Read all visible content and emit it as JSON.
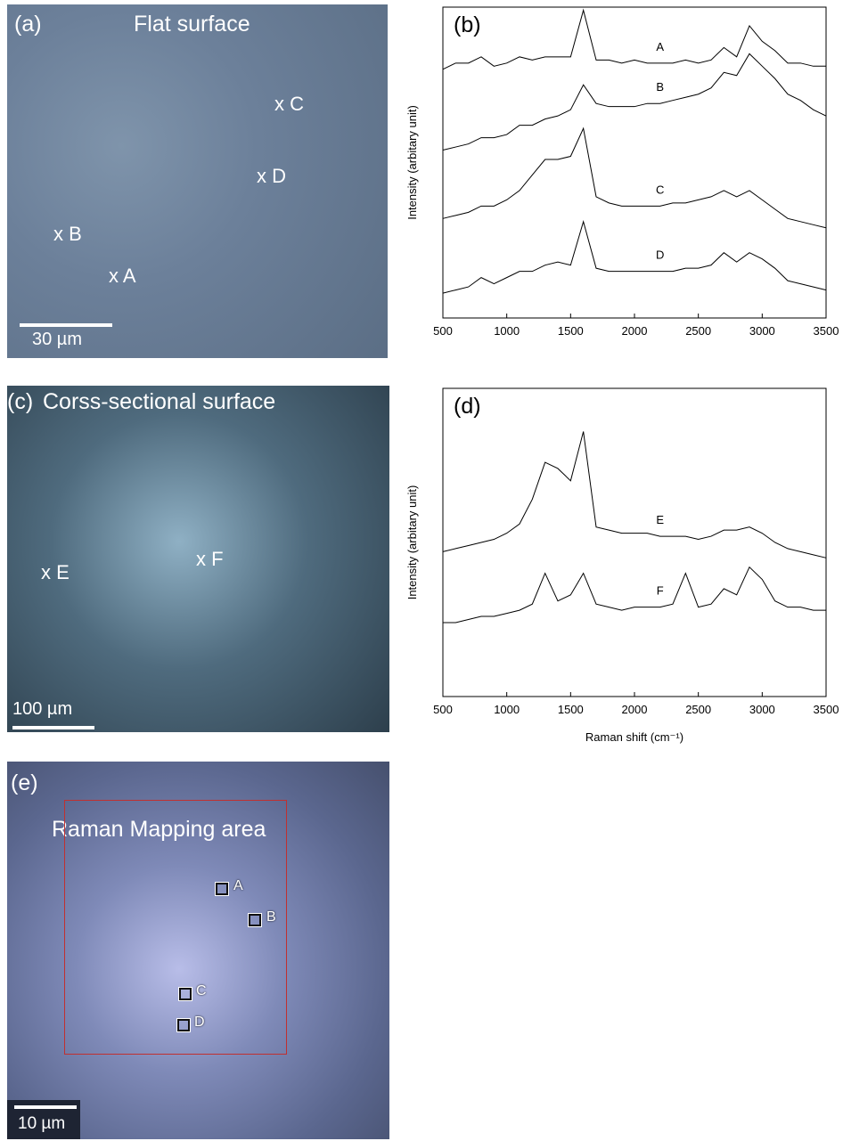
{
  "panels": {
    "a": {
      "label": "(a)",
      "title": "Flat surface",
      "markers": [
        "x A",
        "x B",
        "x C",
        "x D"
      ],
      "scale_bar": "30 µm"
    },
    "c": {
      "label": "(c)",
      "title": "Corss-sectional surface",
      "markers": [
        "x E",
        "x F"
      ],
      "scale_bar": "100 µm"
    },
    "e": {
      "label": "(e)",
      "title": "Raman Mapping area",
      "markers": [
        "A",
        "B",
        "C",
        "D"
      ],
      "scale_bar": "10 µm"
    }
  },
  "chart_data": [
    {
      "type": "line",
      "panel_label": "(b)",
      "y_label": "Intensity (arbitary unit)",
      "xlim": [
        500,
        3500
      ],
      "xticks": [
        500,
        1000,
        1500,
        2000,
        2500,
        3000,
        3500
      ],
      "ylim": [
        0,
        10
      ],
      "x": [
        500,
        600,
        700,
        800,
        900,
        1000,
        1100,
        1200,
        1300,
        1400,
        1500,
        1600,
        1700,
        1800,
        1900,
        2000,
        2100,
        2200,
        2300,
        2400,
        2500,
        2600,
        2700,
        2800,
        2900,
        3000,
        3100,
        3200,
        3300,
        3400,
        3500
      ],
      "series": [
        {
          "name": "A",
          "color": "#000000",
          "values": [
            8.0,
            8.2,
            8.2,
            8.4,
            8.1,
            8.2,
            8.4,
            8.3,
            8.4,
            8.4,
            8.4,
            9.9,
            8.3,
            8.3,
            8.2,
            8.3,
            8.2,
            8.2,
            8.2,
            8.3,
            8.2,
            8.3,
            8.7,
            8.4,
            9.4,
            8.9,
            8.6,
            8.2,
            8.2,
            8.1,
            8.1
          ]
        },
        {
          "name": "B",
          "color": "#000000",
          "values": [
            5.4,
            5.5,
            5.6,
            5.8,
            5.8,
            5.9,
            6.2,
            6.2,
            6.4,
            6.5,
            6.7,
            7.5,
            6.9,
            6.8,
            6.8,
            6.8,
            6.9,
            6.9,
            7.0,
            7.1,
            7.2,
            7.4,
            7.9,
            7.8,
            8.5,
            8.1,
            7.7,
            7.2,
            7.0,
            6.7,
            6.5
          ]
        },
        {
          "name": "C",
          "color": "#000000",
          "values": [
            3.2,
            3.3,
            3.4,
            3.6,
            3.6,
            3.8,
            4.1,
            4.6,
            5.1,
            5.1,
            5.2,
            6.1,
            3.9,
            3.7,
            3.6,
            3.6,
            3.6,
            3.6,
            3.7,
            3.7,
            3.8,
            3.9,
            4.1,
            3.9,
            4.1,
            3.8,
            3.5,
            3.2,
            3.1,
            3.0,
            2.9
          ]
        },
        {
          "name": "D",
          "color": "#000000",
          "values": [
            0.8,
            0.9,
            1.0,
            1.3,
            1.1,
            1.3,
            1.5,
            1.5,
            1.7,
            1.8,
            1.7,
            3.1,
            1.6,
            1.5,
            1.5,
            1.5,
            1.5,
            1.5,
            1.5,
            1.6,
            1.6,
            1.7,
            2.1,
            1.8,
            2.1,
            1.9,
            1.6,
            1.2,
            1.1,
            1.0,
            0.9
          ]
        }
      ]
    },
    {
      "type": "line",
      "panel_label": "(d)",
      "y_label": "Intensity (arbitary unit)",
      "x_label": "Raman shift (cm⁻¹)",
      "xlim": [
        500,
        3500
      ],
      "xticks": [
        500,
        1000,
        1500,
        2000,
        2500,
        3000,
        3500
      ],
      "ylim": [
        0,
        10
      ],
      "x": [
        500,
        600,
        700,
        800,
        900,
        1000,
        1100,
        1200,
        1300,
        1400,
        1500,
        1600,
        1700,
        1800,
        1900,
        2000,
        2100,
        2200,
        2300,
        2400,
        2500,
        2600,
        2700,
        2800,
        2900,
        3000,
        3100,
        3200,
        3300,
        3400,
        3500
      ],
      "series": [
        {
          "name": "E",
          "color": "#000000",
          "values": [
            4.7,
            4.8,
            4.9,
            5.0,
            5.1,
            5.3,
            5.6,
            6.4,
            7.6,
            7.4,
            7.0,
            8.6,
            5.5,
            5.4,
            5.3,
            5.3,
            5.3,
            5.2,
            5.2,
            5.2,
            5.1,
            5.2,
            5.4,
            5.4,
            5.5,
            5.3,
            5.0,
            4.8,
            4.7,
            4.6,
            4.5
          ]
        },
        {
          "name": "F",
          "color": "#000000",
          "values": [
            2.4,
            2.4,
            2.5,
            2.6,
            2.6,
            2.7,
            2.8,
            3.0,
            4.0,
            3.1,
            3.3,
            4.0,
            3.0,
            2.9,
            2.8,
            2.9,
            2.9,
            2.9,
            3.0,
            4.0,
            2.9,
            3.0,
            3.5,
            3.3,
            4.2,
            3.8,
            3.1,
            2.9,
            2.9,
            2.8,
            2.8
          ]
        }
      ]
    }
  ]
}
